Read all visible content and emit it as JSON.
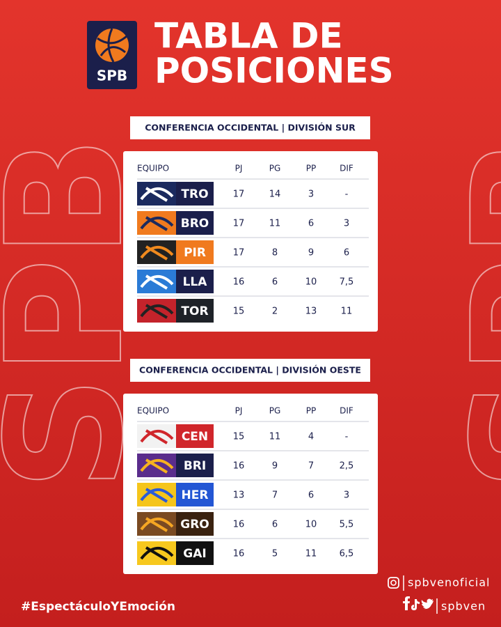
{
  "header": {
    "logo": "SPB",
    "title_lines": [
      "TABLA DE",
      "POSICIONES"
    ]
  },
  "watermark": "SPB",
  "tables": [
    {
      "heading": "CONFERENCIA OCCIDENTAL | DIVISIÓN SUR",
      "columns": [
        "EQUIPO",
        "PJ",
        "PG",
        "PP",
        "DIF"
      ],
      "rows": [
        [
          "TRO",
          "17",
          "14",
          "3",
          "-"
        ],
        [
          "BRO",
          "17",
          "11",
          "6",
          "3"
        ],
        [
          "PIR",
          "17",
          "8",
          "9",
          "6"
        ],
        [
          "LLA",
          "16",
          "6",
          "10",
          "7,5"
        ],
        [
          "TOR",
          "15",
          "2",
          "13",
          "11"
        ]
      ]
    },
    {
      "heading": "CONFERENCIA OCCIDENTAL | DIVISIÓN OESTE",
      "columns": [
        "EQUIPO",
        "PJ",
        "PG",
        "PP",
        "DIF"
      ],
      "rows": [
        [
          "CEN",
          "15",
          "11",
          "4",
          "-"
        ],
        [
          "BRI",
          "16",
          "9",
          "7",
          "2,5"
        ],
        [
          "HER",
          "13",
          "7",
          "6",
          "3"
        ],
        [
          "GRO",
          "16",
          "6",
          "10",
          "5,5"
        ],
        [
          "GAI",
          "16",
          "5",
          "11",
          "6,5"
        ]
      ]
    }
  ],
  "footer": {
    "hashtag": "#EspectáculoYEmoción",
    "instagram": "spbvenoficial",
    "handle": "spbven"
  }
}
